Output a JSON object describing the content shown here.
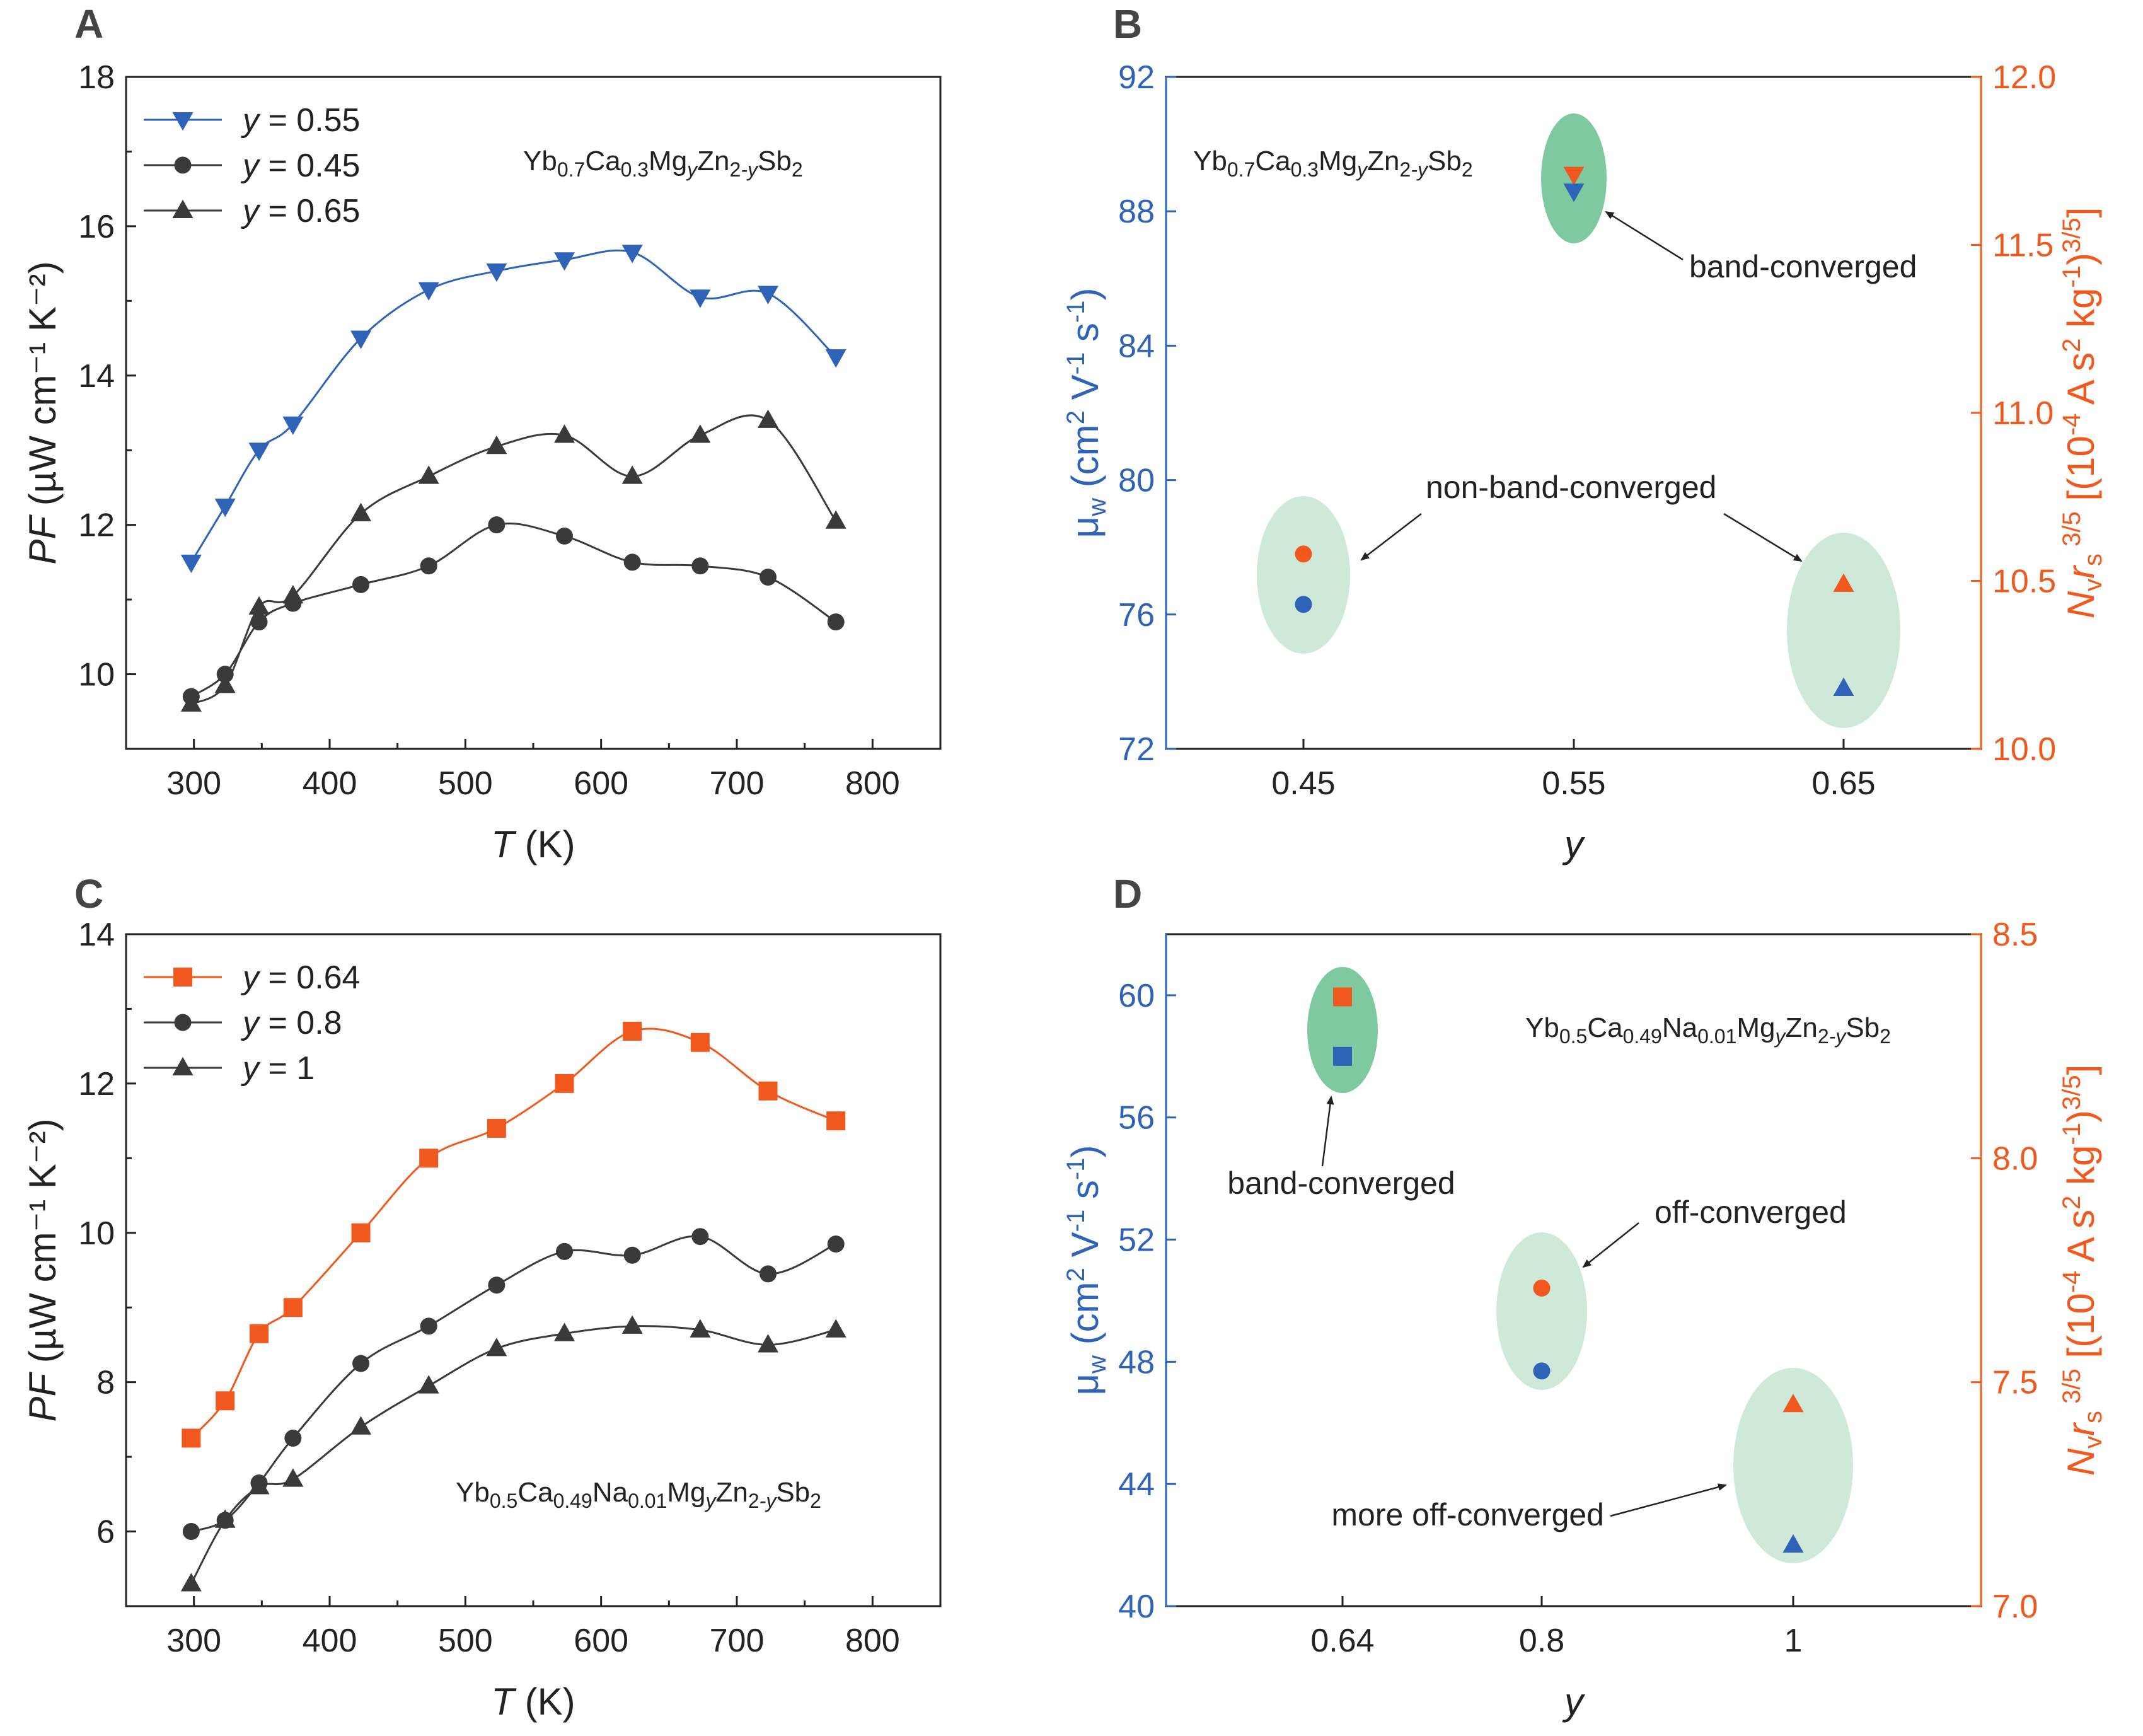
{
  "colors": {
    "blue": "#2e63b8",
    "orange": "#f0581e",
    "gray": "#3a3a3a",
    "green_dark": "#7fc9a0",
    "green_light": "#cfe9d9",
    "axis_black": "#222222"
  },
  "chart_data": [
    {
      "panel": "A",
      "type": "line",
      "xlabel_italic": "T",
      "xlabel_rest": " (K)",
      "ylabel_italic": "PF",
      "ylabel_rest": " (µW cm⁻¹ K⁻²)",
      "xlim": [
        250,
        850
      ],
      "ylim": [
        9,
        18
      ],
      "xticks": [
        300,
        400,
        500,
        600,
        700,
        800
      ],
      "yticks": [
        10,
        12,
        14,
        16,
        18
      ],
      "formula": "Yb0.7Ca0.3MgyZn2-ySb2",
      "series": [
        {
          "name": "y = 0.55",
          "legend_prefix": "y",
          "legend_value": " = 0.55",
          "color": "#2e63b8",
          "marker": "triangle-down",
          "x": [
            298,
            323,
            348,
            373,
            423,
            473,
            523,
            573,
            623,
            673,
            723,
            773
          ],
          "y": [
            11.5,
            12.25,
            13.0,
            13.35,
            14.5,
            15.15,
            15.4,
            15.55,
            15.65,
            15.05,
            15.1,
            14.25
          ]
        },
        {
          "name": "y = 0.45",
          "legend_prefix": "y",
          "legend_value": " = 0.45",
          "color": "#3a3a3a",
          "marker": "circle",
          "x": [
            298,
            323,
            348,
            373,
            423,
            473,
            523,
            573,
            623,
            673,
            723,
            773
          ],
          "y": [
            9.7,
            10.0,
            10.7,
            10.95,
            11.2,
            11.45,
            12.0,
            11.85,
            11.5,
            11.45,
            11.3,
            10.7
          ]
        },
        {
          "name": "y = 0.65",
          "legend_prefix": "y",
          "legend_value": " = 0.65",
          "color": "#3a3a3a",
          "marker": "triangle-up",
          "x": [
            298,
            323,
            348,
            373,
            423,
            473,
            523,
            573,
            623,
            673,
            723,
            773
          ],
          "y": [
            9.6,
            9.85,
            10.9,
            11.05,
            12.15,
            12.65,
            13.05,
            13.2,
            12.65,
            13.2,
            13.4,
            12.05
          ]
        }
      ]
    },
    {
      "panel": "B",
      "type": "scatter",
      "xlabel_italic": "y",
      "ylabel_left": "µW (cm² V⁻¹ s⁻¹)",
      "ylabel_right": "Nv rs^3/5 [(10⁻⁴ A s² kg⁻¹)^3/5]",
      "categories": [
        "0.45",
        "0.55",
        "0.65"
      ],
      "ylim_left": [
        72,
        92
      ],
      "yticks_left": [
        72,
        76,
        80,
        84,
        88,
        92
      ],
      "ylim_right": [
        10.0,
        12.0
      ],
      "yticks_right": [
        "10.0",
        "10.5",
        "11.0",
        "11.5",
        "12.0"
      ],
      "formula": "Yb0.7Ca0.3MgyZn2-ySb2",
      "mu_w": [
        76.3,
        88.6,
        73.8
      ],
      "nv_rs": [
        10.58,
        11.71,
        10.49
      ],
      "markers": [
        "circle",
        "triangle-down",
        "triangle-up"
      ],
      "annotations": [
        "band-converged",
        "non-band-converged"
      ]
    },
    {
      "panel": "C",
      "type": "line",
      "xlabel_italic": "T",
      "xlabel_rest": " (K)",
      "ylabel_italic": "PF",
      "ylabel_rest": " (µW cm⁻¹ K⁻²)",
      "xlim": [
        250,
        850
      ],
      "ylim": [
        5,
        14
      ],
      "xticks": [
        300,
        400,
        500,
        600,
        700,
        800
      ],
      "yticks": [
        6,
        8,
        10,
        12,
        14
      ],
      "formula": "Yb0.5Ca0.49Na0.01MgyZn2-ySb2",
      "series": [
        {
          "name": "y = 0.64",
          "legend_prefix": "y",
          "legend_value": " = 0.64",
          "color": "#f0581e",
          "marker": "square",
          "x": [
            298,
            323,
            348,
            373,
            423,
            473,
            523,
            573,
            623,
            673,
            723,
            773
          ],
          "y": [
            7.25,
            7.75,
            8.65,
            9.0,
            10.0,
            11.0,
            11.4,
            12.0,
            12.7,
            12.55,
            11.9,
            11.5
          ]
        },
        {
          "name": "y = 0.8",
          "legend_prefix": "y",
          "legend_value": " = 0.8",
          "color": "#3a3a3a",
          "marker": "circle",
          "x": [
            298,
            323,
            348,
            373,
            423,
            473,
            523,
            573,
            623,
            673,
            723,
            773
          ],
          "y": [
            6.0,
            6.15,
            6.65,
            7.25,
            8.25,
            8.75,
            9.3,
            9.75,
            9.7,
            9.95,
            9.45,
            9.85
          ]
        },
        {
          "name": "y = 1",
          "legend_prefix": "y",
          "legend_value": " = 1",
          "color": "#3a3a3a",
          "marker": "triangle-up",
          "x": [
            298,
            323,
            348,
            373,
            423,
            473,
            523,
            573,
            623,
            673,
            723,
            773
          ],
          "y": [
            5.3,
            6.15,
            6.6,
            6.7,
            7.4,
            7.95,
            8.45,
            8.65,
            8.75,
            8.7,
            8.5,
            8.7
          ]
        }
      ]
    },
    {
      "panel": "D",
      "type": "scatter",
      "xlabel_italic": "y",
      "ylabel_left": "µW (cm² V⁻¹ s⁻¹)",
      "ylabel_right": "Nv rs^3/5 [(10⁻⁴ A s² kg⁻¹)^3/5]",
      "categories": [
        "0.64",
        "0.8",
        "1"
      ],
      "ylim_left": [
        40,
        62
      ],
      "yticks_left": [
        40,
        44,
        48,
        52,
        56,
        60
      ],
      "ylim_right": [
        7.0,
        8.5
      ],
      "yticks_right": [
        "7.0",
        "7.5",
        "8.0",
        "8.5"
      ],
      "formula": "Yb0.5Ca0.49Na0.01MgyZn2-ySb2",
      "mu_w": [
        58.0,
        47.7,
        42.0
      ],
      "nv_rs": [
        8.36,
        7.71,
        7.45
      ],
      "markers": [
        "square",
        "circle",
        "triangle-up"
      ],
      "annotations": [
        "band-converged",
        "off-converged",
        "more off-converged"
      ]
    }
  ],
  "panel_letters": [
    "A",
    "B",
    "C",
    "D"
  ]
}
